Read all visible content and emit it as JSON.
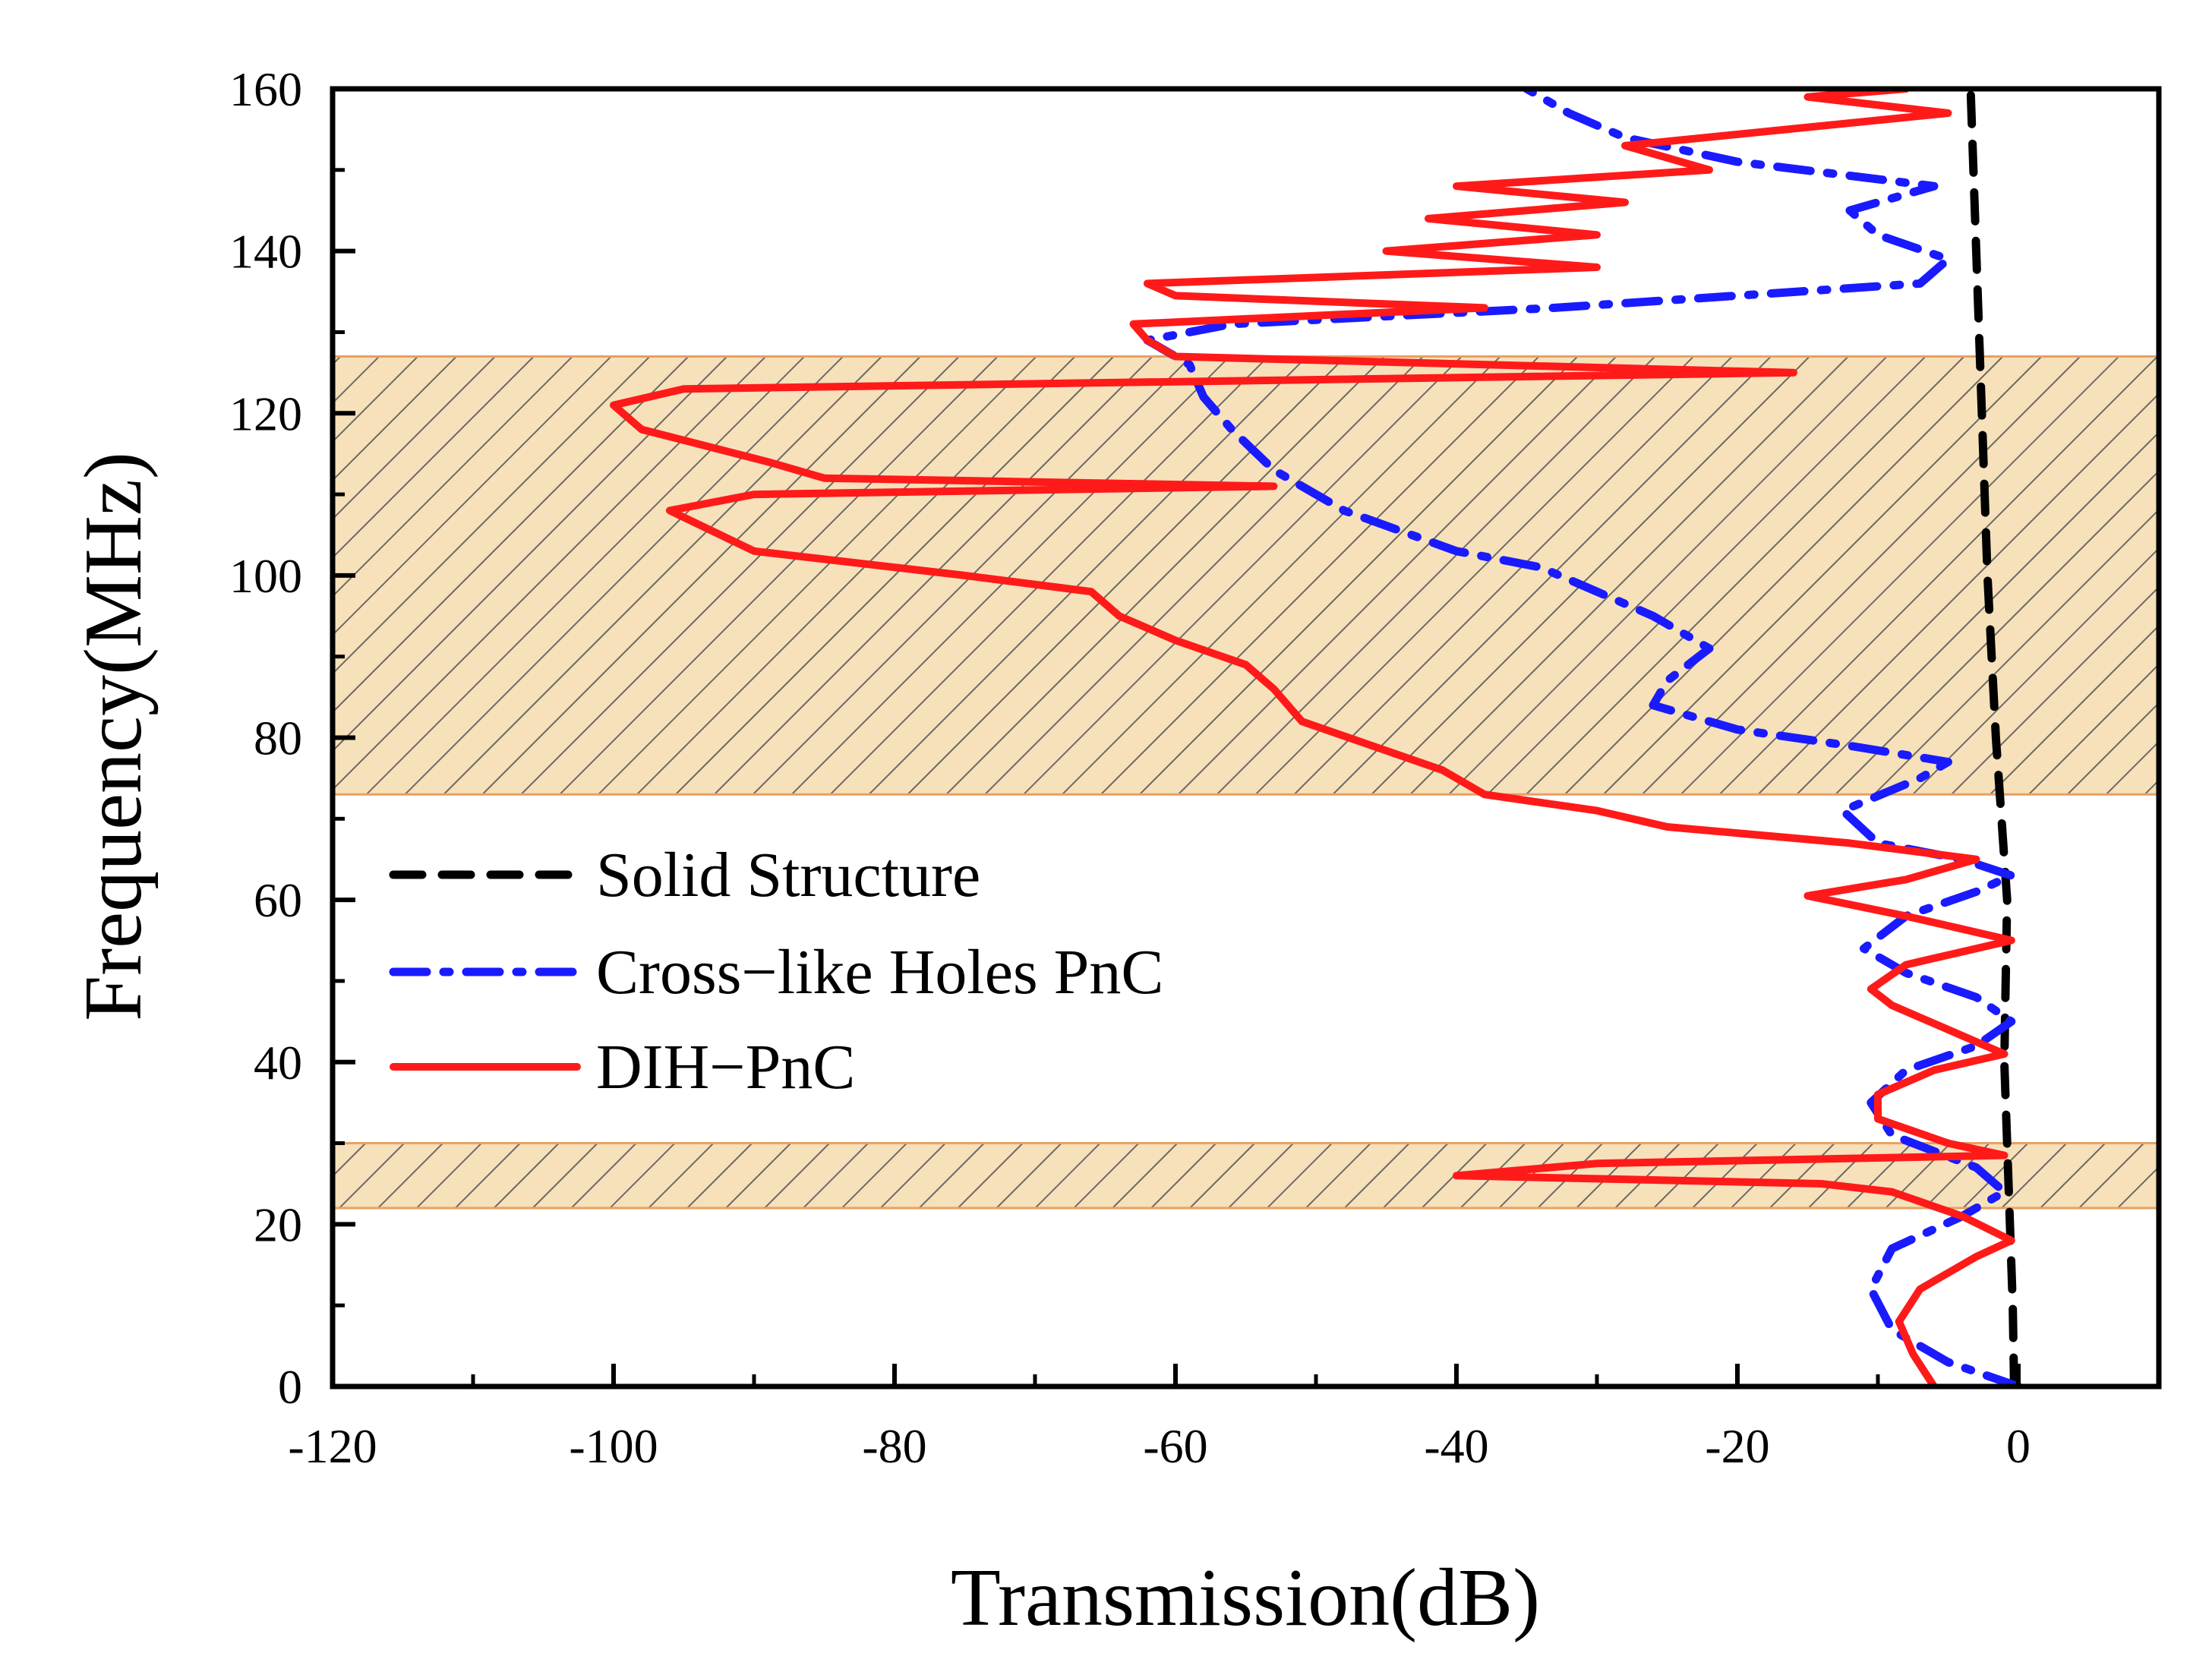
{
  "chart_data": {
    "type": "line",
    "orientation": "vertical-frequency",
    "title": "",
    "xlabel": "Transmission(dB)",
    "ylabel": "Frequency(MHz)",
    "xlim": [
      -120,
      10
    ],
    "ylim": [
      0,
      160
    ],
    "xticks": [
      -120,
      -100,
      -80,
      -60,
      -40,
      -20,
      0
    ],
    "yticks": [
      0,
      20,
      40,
      60,
      80,
      100,
      120,
      140,
      160
    ],
    "grid": false,
    "legend_position": "middle-left",
    "colors": {
      "solid": "#000000",
      "cross": "#1a1aff",
      "dih": "#ff1a1a",
      "band_fill": "#f5deb3",
      "band_edge": "#e8a060",
      "hatch": "#555555"
    },
    "bandgaps": [
      {
        "from": 22,
        "to": 30
      },
      {
        "from": 73,
        "to": 127
      }
    ],
    "series": [
      {
        "name": "Solid Structure",
        "style": "dash",
        "points": [
          [
            -0.3,
            0
          ],
          [
            -0.4,
            10
          ],
          [
            -0.6,
            20
          ],
          [
            -0.8,
            30
          ],
          [
            -1.0,
            40
          ],
          [
            -0.9,
            50
          ],
          [
            -0.8,
            60
          ],
          [
            -1.2,
            70
          ],
          [
            -1.6,
            80
          ],
          [
            -1.9,
            90
          ],
          [
            -2.2,
            100
          ],
          [
            -2.4,
            110
          ],
          [
            -2.6,
            120
          ],
          [
            -2.8,
            130
          ],
          [
            -3.0,
            140
          ],
          [
            -3.2,
            150
          ],
          [
            -3.4,
            160
          ]
        ]
      },
      {
        "name": "Cross−like Holes PnC",
        "style": "dashdot",
        "points": [
          [
            0,
            0
          ],
          [
            -5,
            3
          ],
          [
            -9,
            7
          ],
          [
            -10.5,
            12
          ],
          [
            -9,
            17
          ],
          [
            -4,
            21
          ],
          [
            -1,
            24
          ],
          [
            -3,
            27
          ],
          [
            -6,
            29
          ],
          [
            -9,
            31
          ],
          [
            -10.5,
            35
          ],
          [
            -8,
            39
          ],
          [
            -3,
            42
          ],
          [
            -0.5,
            45
          ],
          [
            -3,
            48
          ],
          [
            -8,
            51
          ],
          [
            -11,
            54
          ],
          [
            -8,
            58
          ],
          [
            -3,
            61
          ],
          [
            -0.5,
            63
          ],
          [
            -4,
            65
          ],
          [
            -10,
            67
          ],
          [
            -12.5,
            71
          ],
          [
            -7,
            75
          ],
          [
            -5,
            77
          ],
          [
            -12,
            79
          ],
          [
            -20,
            81
          ],
          [
            -26,
            84
          ],
          [
            -25,
            87
          ],
          [
            -22,
            91
          ],
          [
            -26,
            95
          ],
          [
            -30,
            98
          ],
          [
            -34,
            101
          ],
          [
            -40,
            103
          ],
          [
            -48,
            108
          ],
          [
            -53,
            113
          ],
          [
            -56,
            118
          ],
          [
            -58,
            122
          ],
          [
            -59,
            126
          ],
          [
            -62,
            129
          ],
          [
            -56,
            131
          ],
          [
            -33,
            133
          ],
          [
            -7,
            136
          ],
          [
            -5,
            139
          ],
          [
            -10,
            142
          ],
          [
            -12,
            145
          ],
          [
            -6,
            148
          ],
          [
            -20,
            151
          ],
          [
            -28,
            154
          ],
          [
            -32,
            157
          ],
          [
            -35,
            160
          ]
        ]
      },
      {
        "name": "DIH−PnC",
        "style": "solid",
        "points": [
          [
            -6,
            0
          ],
          [
            -7.5,
            4
          ],
          [
            -8.5,
            8
          ],
          [
            -7,
            12
          ],
          [
            -3,
            16
          ],
          [
            -0.5,
            18
          ],
          [
            -4,
            21
          ],
          [
            -9,
            24
          ],
          [
            -14,
            25
          ],
          [
            -40,
            26
          ],
          [
            -30,
            27.5
          ],
          [
            -1,
            28.5
          ],
          [
            -5,
            30
          ],
          [
            -10,
            33
          ],
          [
            -10,
            36
          ],
          [
            -6,
            39
          ],
          [
            -1,
            41
          ],
          [
            -5,
            44
          ],
          [
            -9,
            47
          ],
          [
            -10.5,
            49
          ],
          [
            -8,
            52
          ],
          [
            -3,
            54
          ],
          [
            -0.5,
            55
          ],
          [
            -8,
            58
          ],
          [
            -15,
            60.5
          ],
          [
            -8,
            62.5
          ],
          [
            -3,
            65
          ],
          [
            -12,
            67
          ],
          [
            -25,
            69
          ],
          [
            -30,
            71
          ],
          [
            -38,
            73
          ],
          [
            -41,
            76
          ],
          [
            -46,
            79
          ],
          [
            -51,
            82
          ],
          [
            -53,
            86
          ],
          [
            -55,
            89
          ],
          [
            -60,
            92
          ],
          [
            -64,
            95
          ],
          [
            -66,
            98
          ],
          [
            -75,
            100
          ],
          [
            -90,
            103
          ],
          [
            -96,
            108
          ],
          [
            -90,
            110
          ],
          [
            -53,
            111
          ],
          [
            -85,
            112
          ],
          [
            -89,
            114
          ],
          [
            -98,
            118
          ],
          [
            -100,
            121
          ],
          [
            -95,
            123
          ],
          [
            -16,
            125
          ],
          [
            -60,
            127
          ],
          [
            -62,
            129
          ],
          [
            -63,
            131
          ],
          [
            -38,
            133
          ],
          [
            -60,
            134.5
          ],
          [
            -62,
            136
          ],
          [
            -30,
            138
          ],
          [
            -45,
            140
          ],
          [
            -30,
            142
          ],
          [
            -42,
            144
          ],
          [
            -28,
            146
          ],
          [
            -40,
            148
          ],
          [
            -22,
            150
          ],
          [
            -28,
            153
          ],
          [
            -5,
            157
          ],
          [
            -15,
            159
          ],
          [
            -8,
            160
          ]
        ]
      }
    ]
  }
}
